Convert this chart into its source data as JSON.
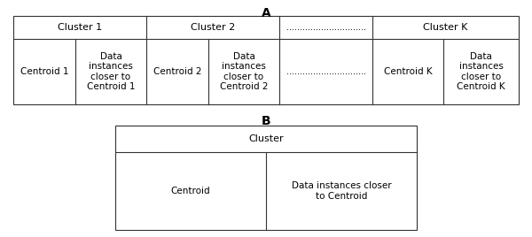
{
  "title_A": "A",
  "title_B": "B",
  "bg_color": "#ffffff",
  "border_color": "#333333",
  "text_color": "#000000",
  "cluster1_header": "Cluster 1",
  "cluster2_header": "Cluster 2",
  "clusterK_header": "Cluster K",
  "dots_header": "..............................",
  "centroid1": "Centroid 1",
  "data1": "Data\ninstances\ncloser to\nCentroid 1",
  "centroid2": "Centroid 2",
  "data2": "Data\ninstances\ncloser to\nCentroid 2",
  "dotsB": "..............................",
  "centroidK": "Centroid K",
  "dataK": "Data\ninstances\ncloser to\nCentroid K",
  "cluster_single": "Cluster",
  "centroid_single": "Centroid",
  "data_single": "Data instances closer\nto Centroid",
  "font_size_title": 10,
  "font_size_header": 8,
  "font_size_cell": 7.5,
  "font_size_dots": 7
}
